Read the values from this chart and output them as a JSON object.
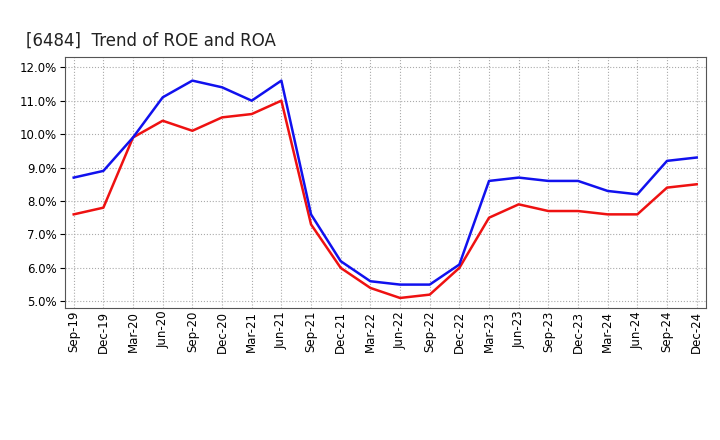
{
  "title": "[6484]  Trend of ROE and ROA",
  "x_labels": [
    "Sep-19",
    "Dec-19",
    "Mar-20",
    "Jun-20",
    "Sep-20",
    "Dec-20",
    "Mar-21",
    "Jun-21",
    "Sep-21",
    "Dec-21",
    "Mar-22",
    "Jun-22",
    "Sep-22",
    "Dec-22",
    "Mar-23",
    "Jun-23",
    "Sep-23",
    "Dec-23",
    "Mar-24",
    "Jun-24",
    "Sep-24",
    "Dec-24"
  ],
  "ROE": [
    7.6,
    7.8,
    9.9,
    10.4,
    10.1,
    10.5,
    10.6,
    11.0,
    7.3,
    6.0,
    5.4,
    5.1,
    5.2,
    6.0,
    7.5,
    7.9,
    7.7,
    7.7,
    7.6,
    7.6,
    8.4,
    8.5
  ],
  "ROA": [
    8.7,
    8.9,
    9.9,
    11.1,
    11.6,
    11.4,
    11.0,
    11.6,
    7.6,
    6.2,
    5.6,
    5.5,
    5.5,
    6.1,
    8.6,
    8.7,
    8.6,
    8.6,
    8.3,
    8.2,
    9.2,
    9.3
  ],
  "ROE_color": "#EE1111",
  "ROA_color": "#1111EE",
  "ylim": [
    4.8,
    12.3
  ],
  "yticks": [
    5.0,
    6.0,
    7.0,
    8.0,
    9.0,
    10.0,
    11.0,
    12.0
  ],
  "background_color": "#FFFFFF",
  "plot_bg_color": "#FFFFFF",
  "grid_color": "#AAAAAA",
  "title_fontsize": 12,
  "legend_fontsize": 10,
  "tick_fontsize": 8.5
}
